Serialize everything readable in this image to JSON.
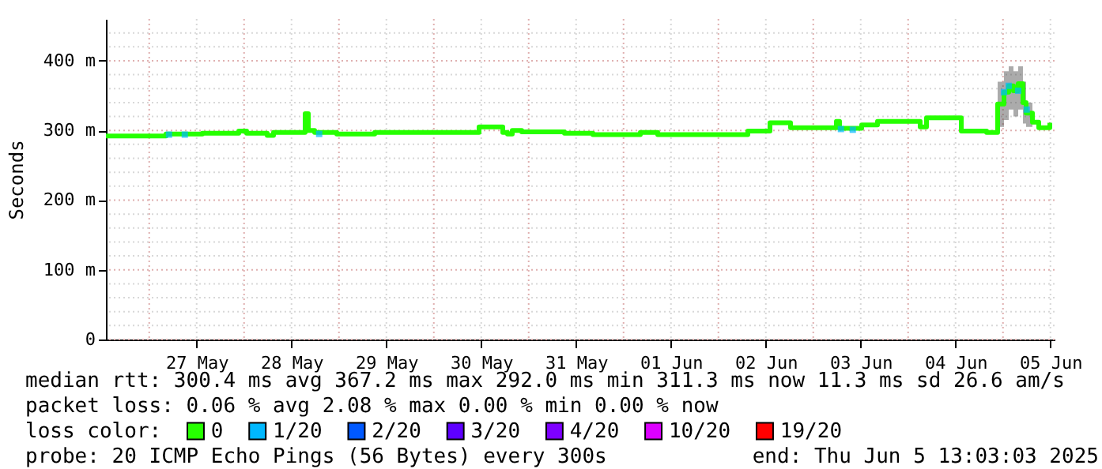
{
  "chart_data": {
    "type": "step",
    "ylabel": "Seconds",
    "legend_title": "loss color:",
    "legend": "bottom",
    "grid": true,
    "xlim": [
      "2025-05-26T13:03",
      "2025-06-05T13:03"
    ],
    "xticks": [
      {
        "value": "2025-05-27T00:00",
        "label": null
      },
      {
        "value": "2025-05-27T12:00",
        "label": "27 May"
      },
      {
        "value": "2025-05-28T00:00",
        "label": null
      },
      {
        "value": "2025-05-28T12:00",
        "label": "28 May"
      },
      {
        "value": "2025-05-29T00:00",
        "label": null
      },
      {
        "value": "2025-05-29T12:00",
        "label": "29 May"
      },
      {
        "value": "2025-05-30T00:00",
        "label": null
      },
      {
        "value": "2025-05-30T12:00",
        "label": "30 May"
      },
      {
        "value": "2025-05-31T00:00",
        "label": null
      },
      {
        "value": "2025-05-31T12:00",
        "label": "31 May"
      },
      {
        "value": "2025-06-01T00:00",
        "label": null
      },
      {
        "value": "2025-06-01T12:00",
        "label": "01 Jun"
      },
      {
        "value": "2025-06-02T00:00",
        "label": null
      },
      {
        "value": "2025-06-02T12:00",
        "label": "02 Jun"
      },
      {
        "value": "2025-06-03T00:00",
        "label": null
      },
      {
        "value": "2025-06-03T12:00",
        "label": "03 Jun"
      },
      {
        "value": "2025-06-04T00:00",
        "label": null
      },
      {
        "value": "2025-06-04T12:00",
        "label": "04 Jun"
      },
      {
        "value": "2025-06-05T00:00",
        "label": null
      },
      {
        "value": "2025-06-05T12:00",
        "label": "05 Jun"
      }
    ],
    "ylim": [
      0,
      460
    ],
    "yticks": [
      0,
      {
        "value": 20,
        "label": null
      },
      {
        "value": 40,
        "label": null
      },
      {
        "value": 60,
        "label": null
      },
      {
        "value": 80,
        "label": null
      },
      {
        "value": 100,
        "label": "100 m"
      },
      {
        "value": 120,
        "label": null
      },
      {
        "value": 140,
        "label": null
      },
      {
        "value": 160,
        "label": null
      },
      {
        "value": 180,
        "label": null
      },
      {
        "value": 200,
        "label": "200 m"
      },
      {
        "value": 220,
        "label": null
      },
      {
        "value": 240,
        "label": null
      },
      {
        "value": 260,
        "label": null
      },
      {
        "value": 280,
        "label": null
      },
      {
        "value": 300,
        "label": "300 m"
      },
      {
        "value": 320,
        "label": null
      },
      {
        "value": 340,
        "label": null
      },
      {
        "value": 360,
        "label": null
      },
      {
        "value": 380,
        "label": null
      },
      {
        "value": 400,
        "label": "400 m"
      },
      {
        "value": 420,
        "label": null
      },
      {
        "value": 440,
        "label": null
      }
    ],
    "series": [
      {
        "name": "0",
        "color": "#26ff00",
        "x": [
          "2025-05-26T13:03",
          "2025-05-27T04:15",
          "2025-05-27T13:27",
          "2025-05-27T22:39",
          "2025-05-28T00:39",
          "2025-05-28T05:51",
          "2025-05-28T07:27",
          "2025-05-28T15:27",
          "2025-05-28T16:15",
          "2025-05-28T17:51",
          "2025-05-28T23:27",
          "2025-05-29T09:03",
          "2025-05-30T11:27",
          "2025-05-30T17:27",
          "2025-05-30T18:39",
          "2025-05-30T19:51",
          "2025-05-30T22:15",
          "2025-05-31T09:03",
          "2025-05-31T16:15",
          "2025-06-01T04:15",
          "2025-06-01T08:39",
          "2025-06-02T07:27",
          "2025-06-02T13:03",
          "2025-06-02T18:15",
          "2025-06-03T05:51",
          "2025-06-03T06:39",
          "2025-06-03T12:15",
          "2025-06-03T16:15",
          "2025-06-04T03:03",
          "2025-06-04T04:39",
          "2025-06-04T13:27",
          "2025-06-04T19:51",
          "2025-06-04T22:39",
          "2025-06-05T00:15",
          "2025-06-05T01:27",
          "2025-06-05T02:39",
          "2025-06-05T03:51",
          "2025-06-05T05:03",
          "2025-06-05T05:51",
          "2025-06-05T07:27",
          "2025-06-05T09:03",
          "2025-06-05T11:51"
        ],
        "values": [
          292,
          295,
          296,
          299,
          296,
          293,
          297,
          324,
          300,
          297,
          295,
          297,
          305,
          297,
          295,
          300,
          298,
          296,
          294,
          297,
          294,
          299,
          311,
          304,
          313,
          303,
          308,
          313,
          305,
          318,
          299,
          297,
          338,
          355,
          364,
          357,
          367,
          340,
          325,
          312,
          304,
          311
        ],
        "lower": [
          null,
          null,
          null,
          null,
          null,
          null,
          null,
          null,
          null,
          null,
          null,
          null,
          null,
          null,
          null,
          null,
          null,
          null,
          null,
          null,
          null,
          null,
          null,
          null,
          null,
          null,
          null,
          null,
          null,
          null,
          null,
          null,
          305,
          315,
          330,
          320,
          330,
          310,
          305,
          305,
          null,
          null
        ],
        "upper": [
          null,
          null,
          null,
          null,
          null,
          null,
          null,
          null,
          null,
          null,
          null,
          null,
          null,
          null,
          null,
          null,
          null,
          null,
          null,
          null,
          null,
          null,
          null,
          null,
          null,
          null,
          null,
          null,
          null,
          null,
          null,
          null,
          370,
          385,
          392,
          385,
          392,
          370,
          340,
          325,
          null,
          null
        ]
      },
      {
        "name": "1/20",
        "type": "scatter",
        "marker": "square",
        "color": "#00b8ff",
        "x": [
          "2025-05-27T05:00",
          "2025-05-27T09:00",
          "2025-05-28T19:00",
          "2025-06-03T07:00",
          "2025-06-03T10:00",
          "2025-06-05T00:15",
          "2025-06-05T01:27",
          "2025-06-05T03:51",
          "2025-06-05T06:00"
        ],
        "values": [
          294,
          294,
          295,
          302,
          301,
          355,
          364,
          357,
          330
        ]
      },
      {
        "name": "2/20",
        "type": "scatter",
        "marker": "square",
        "color": "#0059ff"
      },
      {
        "name": "3/20",
        "type": "scatter",
        "marker": "square",
        "color": "#5e00ff"
      },
      {
        "name": "4/20",
        "type": "scatter",
        "marker": "square",
        "color": "#7e00ff"
      },
      {
        "name": "10/20",
        "type": "scatter",
        "marker": "square",
        "color": "#dd00ff"
      },
      {
        "name": "19/20",
        "type": "scatter",
        "marker": "square",
        "color": "#ff0000"
      }
    ],
    "annotations": [
      "median rtt:  300.4 ms avg  367.2 ms max  292.0 ms min  311.3 ms now  11.3 ms sd  26.6   am/s",
      "packet loss: 0.06 % avg  2.08 % max  0.00 % min  0.00 % now",
      "probe:       20 ICMP Echo Pings (56 Bytes) every 300s",
      "end: Thu Jun  5 13:03:03 2025"
    ]
  }
}
